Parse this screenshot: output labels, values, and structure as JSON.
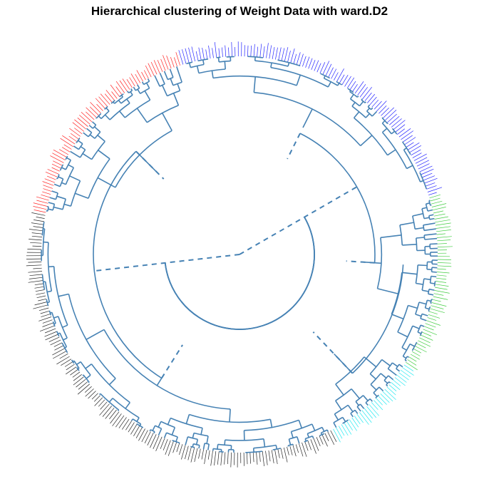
{
  "title": "Hierarchical clustering of Weight Data with ward.D2",
  "dendrogram": {
    "layout": "circular",
    "method": "ward.D2",
    "branch_color": "#4682b4",
    "dashed_root_links": true,
    "leaf_label_text": "not legible",
    "clusters": [
      {
        "color": "#0000ff",
        "leaf_share": 0.25
      },
      {
        "color": "#22c422",
        "leaf_share": 0.14
      },
      {
        "color": "#00e5ee",
        "leaf_share": 0.08
      },
      {
        "color": "#000000",
        "leaf_share": 0.36
      },
      {
        "color": "#ff0000",
        "leaf_share": 0.17
      }
    ]
  }
}
